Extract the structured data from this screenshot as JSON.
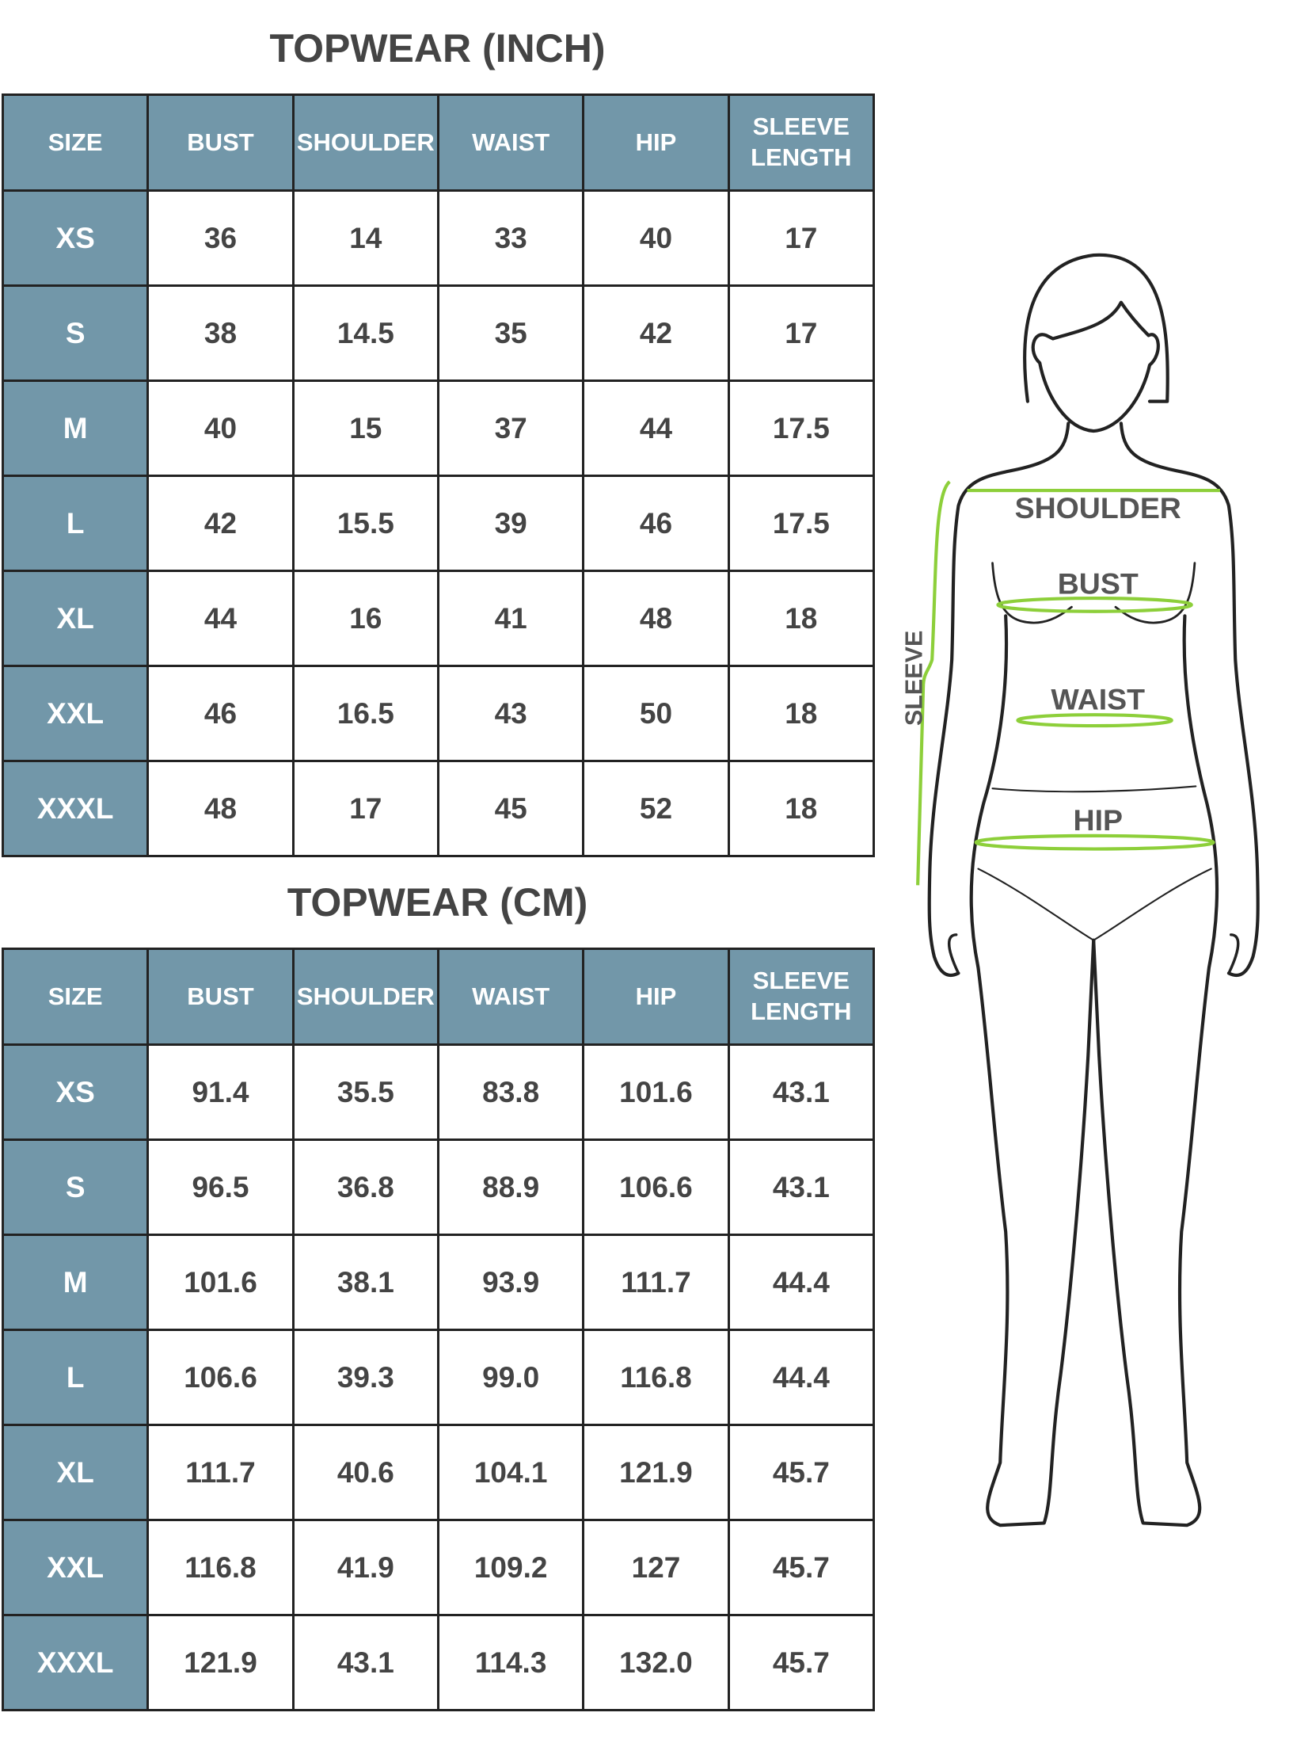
{
  "tables": [
    {
      "title": "TOPWEAR (INCH)",
      "headers": [
        "SIZE",
        "BUST",
        "SHOULDER",
        "WAIST",
        "HIP",
        "SLEEVE LENGTH"
      ],
      "rows": [
        [
          "XS",
          "36",
          "14",
          "33",
          "40",
          "17"
        ],
        [
          "S",
          "38",
          "14.5",
          "35",
          "42",
          "17"
        ],
        [
          "M",
          "40",
          "15",
          "37",
          "44",
          "17.5"
        ],
        [
          "L",
          "42",
          "15.5",
          "39",
          "46",
          "17.5"
        ],
        [
          "XL",
          "44",
          "16",
          "41",
          "48",
          "18"
        ],
        [
          "XXL",
          "46",
          "16.5",
          "43",
          "50",
          "18"
        ],
        [
          "XXXL",
          "48",
          "17",
          "45",
          "52",
          "18"
        ]
      ]
    },
    {
      "title": "TOPWEAR (CM)",
      "headers": [
        "SIZE",
        "BUST",
        "SHOULDER",
        "WAIST",
        "HIP",
        "SLEEVE LENGTH"
      ],
      "rows": [
        [
          "XS",
          "91.4",
          "35.5",
          "83.8",
          "101.6",
          "43.1"
        ],
        [
          "S",
          "96.5",
          "36.8",
          "88.9",
          "106.6",
          "43.1"
        ],
        [
          "M",
          "101.6",
          "38.1",
          "93.9",
          "111.7",
          "44.4"
        ],
        [
          "L",
          "106.6",
          "39.3",
          "99.0",
          "116.8",
          "44.4"
        ],
        [
          "XL",
          "111.7",
          "40.6",
          "104.1",
          "121.9",
          "45.7"
        ],
        [
          "XXL",
          "116.8",
          "41.9",
          "109.2",
          "127",
          "45.7"
        ],
        [
          "XXXL",
          "121.9",
          "43.1",
          "114.3",
          "132.0",
          "45.7"
        ]
      ]
    }
  ],
  "figure": {
    "shoulder": "SHOULDER",
    "bust": "BUST",
    "waist": "WAIST",
    "hip": "HIP",
    "sleeve": "SLEEVE"
  },
  "colors": {
    "header": "#7297a9",
    "measure_line": "#8dcf3a",
    "text": "#444444"
  }
}
